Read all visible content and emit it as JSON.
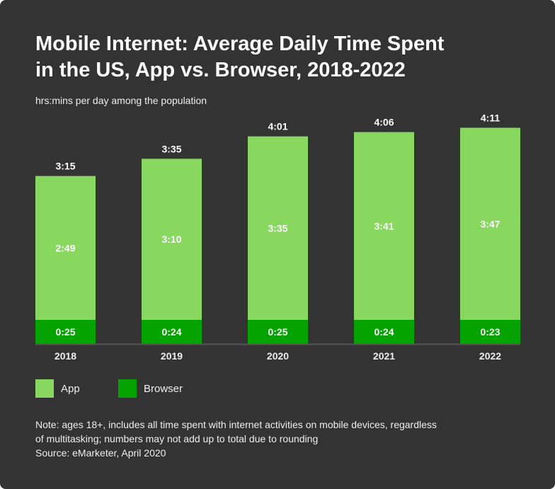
{
  "title_line1": "Mobile Internet: Average Daily Time Spent",
  "title_line2": "in the US, App vs. Browser, 2018-2022",
  "subtitle": "hrs:mins per day among the population",
  "note_line1": "Note: ages 18+, includes all time spent with internet activities on mobile devices, regardless",
  "note_line2": "of multitasking; numbers may not add up to total due to rounding",
  "source": "Source: eMarketer, April 2020",
  "colors": {
    "background": "#333333",
    "app": "#88d85f",
    "browser": "#05a300"
  },
  "chart_data": {
    "type": "bar",
    "stacked": true,
    "unit": "hrs:mins per day",
    "categories": [
      "2018",
      "2019",
      "2020",
      "2021",
      "2022"
    ],
    "series": [
      {
        "name": "Browser",
        "values": [
          "0:25",
          "0:24",
          "0:25",
          "0:24",
          "0:23"
        ]
      },
      {
        "name": "App",
        "values": [
          "2:49",
          "3:10",
          "3:35",
          "3:41",
          "3:47"
        ]
      }
    ],
    "totals": [
      "3:15",
      "3:35",
      "4:01",
      "4:06",
      "4:11"
    ],
    "legend": [
      "App",
      "Browser"
    ],
    "legend_position": "bottom-left",
    "grid": false
  }
}
